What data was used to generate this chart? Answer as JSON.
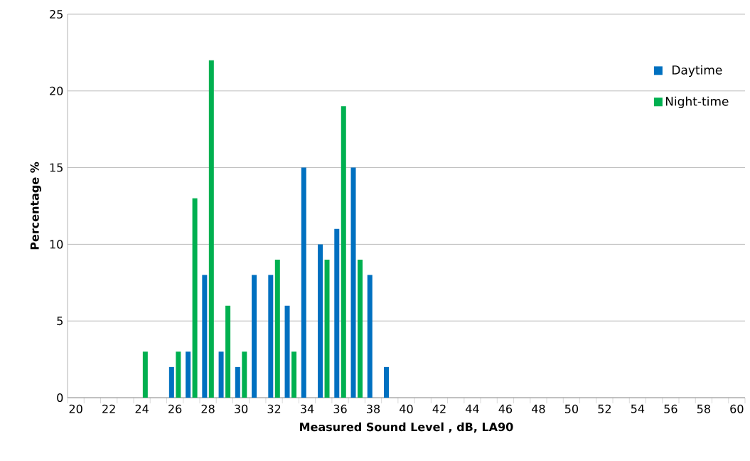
{
  "chart_data": {
    "type": "bar",
    "xlabel": "Measured Sound Level , dB, LA90",
    "ylabel": "Percentage %",
    "categories": [
      "20",
      null,
      "22",
      null,
      "24",
      null,
      "26",
      null,
      "28",
      null,
      "30",
      null,
      "32",
      null,
      "34",
      null,
      "36",
      null,
      "38",
      null,
      "40",
      null,
      "42",
      null,
      "44",
      null,
      "46",
      null,
      "48",
      null,
      "50",
      null,
      "52",
      null,
      "54",
      null,
      "56",
      null,
      "58",
      null,
      "60"
    ],
    "series": [
      {
        "name": "Daytime",
        "color": "#0070c0",
        "values": [
          null,
          null,
          null,
          null,
          null,
          null,
          2,
          3,
          8,
          3,
          2,
          8,
          8,
          6,
          15,
          10,
          11,
          15,
          8,
          2,
          null,
          null,
          null,
          null,
          null,
          null,
          null,
          null,
          null,
          null,
          null,
          null,
          null,
          null,
          null,
          null,
          null,
          null,
          null,
          null,
          null
        ]
      },
      {
        "name": "Night-time",
        "color": "#00b050",
        "values": [
          null,
          null,
          null,
          null,
          3,
          null,
          3,
          13,
          22,
          6,
          3,
          null,
          9,
          3,
          null,
          9,
          19,
          9,
          null,
          null,
          null,
          null,
          null,
          null,
          null,
          null,
          null,
          null,
          null,
          null,
          null,
          null,
          null,
          null,
          null,
          null,
          null,
          null,
          null,
          null,
          null
        ]
      }
    ],
    "ylim": [
      0,
      25
    ],
    "yticks": [
      0,
      5,
      10,
      15,
      20,
      25
    ],
    "grid": "y",
    "legend": "top right"
  }
}
